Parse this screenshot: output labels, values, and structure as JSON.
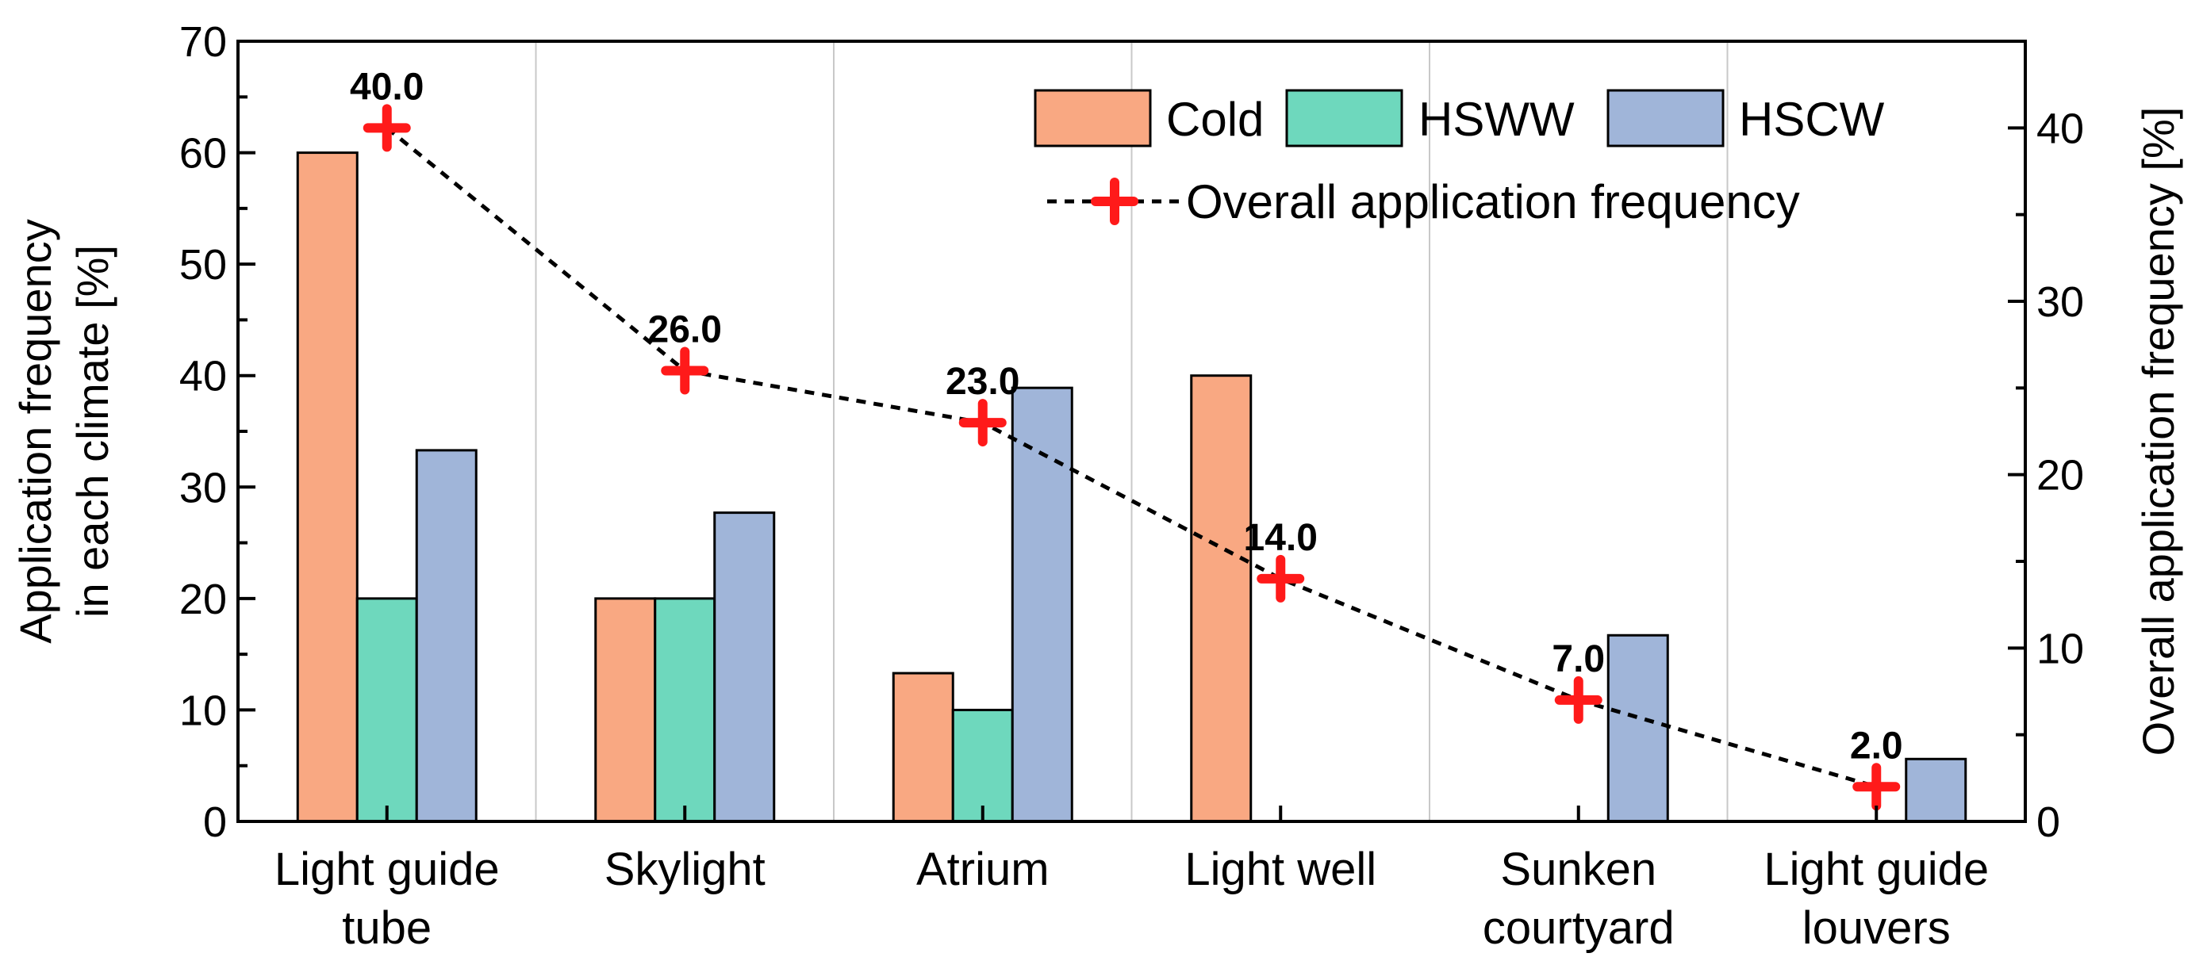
{
  "chart_data": {
    "type": "bar",
    "categories": [
      [
        "Light guide",
        "tube"
      ],
      [
        "Skylight"
      ],
      [
        "Atrium"
      ],
      [
        "Light well"
      ],
      [
        "Sunken",
        "courtyard"
      ],
      [
        "Light guide",
        "louvers"
      ]
    ],
    "series": [
      {
        "name": "Cold",
        "color": "#f9a882",
        "values": [
          60,
          20,
          13.3,
          40,
          0,
          0
        ]
      },
      {
        "name": "HSWW",
        "color": "#6ed8bd",
        "values": [
          20,
          20,
          10,
          0,
          0,
          0
        ]
      },
      {
        "name": "HSCW",
        "color": "#a0b5d9",
        "values": [
          33.3,
          27.7,
          38.9,
          0,
          16.7,
          5.6
        ]
      }
    ],
    "line_series": {
      "name": "Overall application frequency",
      "axis": "right",
      "color": "#ff1a1a",
      "values": [
        40.0,
        26.0,
        23.0,
        14.0,
        7.0,
        2.0
      ],
      "labels": [
        "40.0",
        "26.0",
        "23.0",
        "14.0",
        "7.0",
        "2.0"
      ]
    },
    "ylabel_left": [
      "Application frequency",
      "in each climate [%]"
    ],
    "ylabel_right": "Overall application frequency [%]",
    "ylim_left": [
      0,
      70
    ],
    "yticks_left": [
      0,
      10,
      20,
      30,
      40,
      50,
      60,
      70
    ],
    "ylim_right": [
      0,
      45
    ],
    "yticks_right": [
      0,
      10,
      20,
      30,
      40
    ],
    "legend_position": "top-right",
    "grid": "vertical-separators"
  }
}
